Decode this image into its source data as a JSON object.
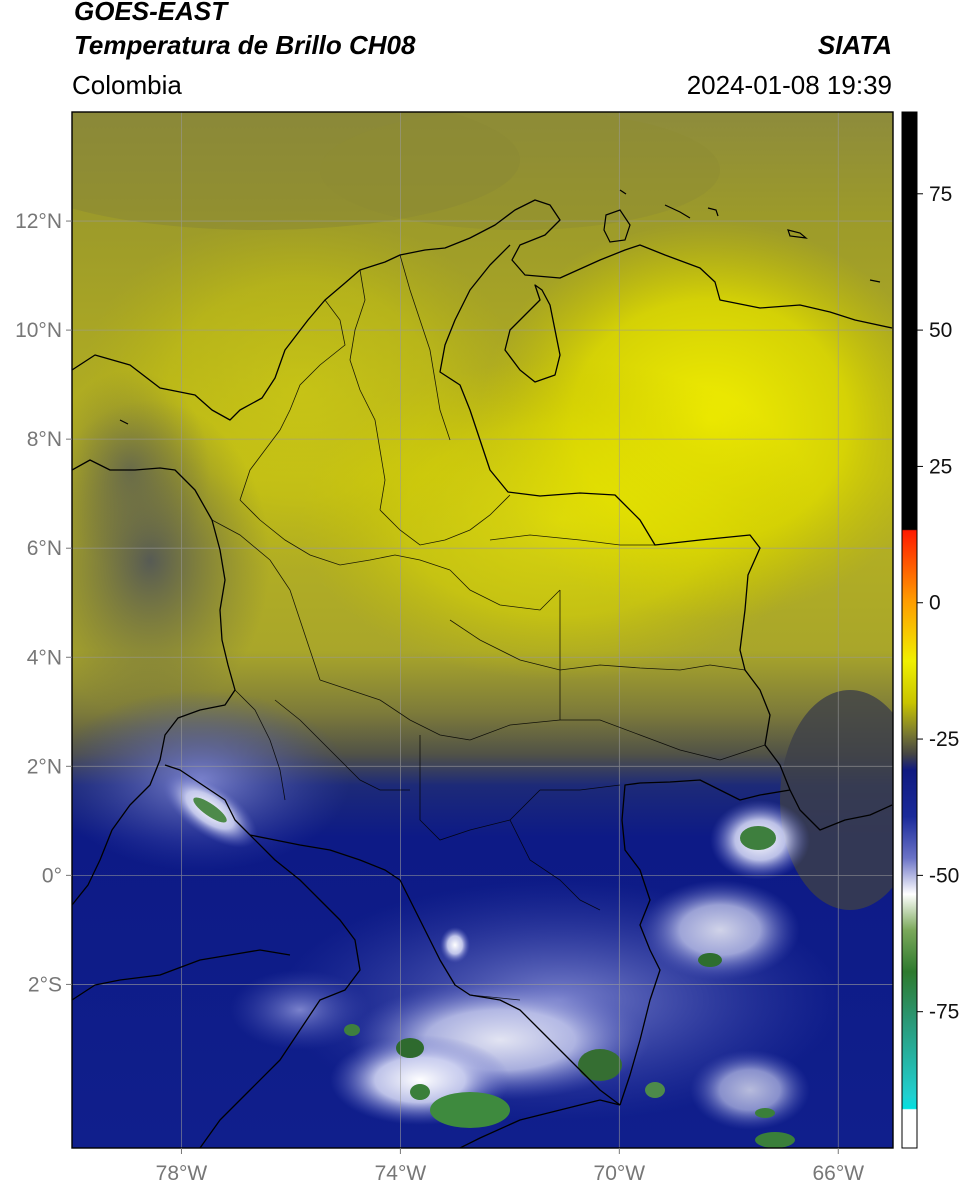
{
  "header": {
    "satellite": "GOES-EAST",
    "product": "Temperatura de Brillo CH08",
    "region": "Colombia",
    "source": "SIATA",
    "datetime": "2024-01-08 19:39"
  },
  "map": {
    "lon_range": [
      -80,
      -65
    ],
    "lat_range": [
      -5,
      14
    ],
    "lon_ticks": [
      {
        "value": -78,
        "label": "78°W"
      },
      {
        "value": -74,
        "label": "74°W"
      },
      {
        "value": -70,
        "label": "70°W"
      },
      {
        "value": -66,
        "label": "66°W"
      }
    ],
    "lat_ticks": [
      {
        "value": 12,
        "label": "12°N"
      },
      {
        "value": 10,
        "label": "10°N"
      },
      {
        "value": 8,
        "label": "8°N"
      },
      {
        "value": 6,
        "label": "6°N"
      },
      {
        "value": 4,
        "label": "4°N"
      },
      {
        "value": 2,
        "label": "2°N"
      },
      {
        "value": 0,
        "label": "0°"
      },
      {
        "value": -2,
        "label": "2°S"
      }
    ],
    "colors": {
      "yellow": "#e6e400",
      "olive": "#8a8a2e",
      "dark_olive": "#5e5f3a",
      "navy": "#0d1a86",
      "light_blue": "#6a72c6",
      "white": "#f4f6ff",
      "green": "#3c8a3c",
      "border": "#000000",
      "grid": "#9a9a9a"
    }
  },
  "colorbar": {
    "range": [
      -100,
      90
    ],
    "ticks": [
      {
        "value": 75,
        "label": "75"
      },
      {
        "value": 50,
        "label": "50"
      },
      {
        "value": 25,
        "label": "25"
      },
      {
        "value": 0,
        "label": "0"
      },
      {
        "value": -25,
        "label": "-25"
      },
      {
        "value": -50,
        "label": "-50"
      },
      {
        "value": -75,
        "label": "-75"
      }
    ]
  }
}
